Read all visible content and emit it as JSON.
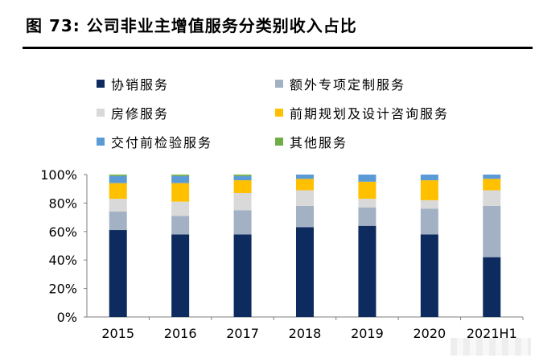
{
  "figure": {
    "title": "图 73:  公司非业主增值服务分类别收入占比"
  },
  "chart_data": {
    "type": "bar",
    "stacked": true,
    "categories": [
      "2015",
      "2016",
      "2017",
      "2018",
      "2019",
      "2020",
      "2021H1"
    ],
    "series": [
      {
        "name": "协销服务",
        "color": "#0d2b5e",
        "values": [
          61,
          58,
          58,
          63,
          64,
          58,
          42
        ]
      },
      {
        "name": "额外专项定制服务",
        "color": "#a3b1c4",
        "values": [
          13,
          13,
          17,
          15,
          13,
          18,
          36
        ]
      },
      {
        "name": "房修服务",
        "color": "#d9d9d9",
        "values": [
          9,
          10,
          12,
          11,
          6,
          6,
          11
        ]
      },
      {
        "name": "前期规划及设计咨询服务",
        "color": "#ffc000",
        "values": [
          11,
          13,
          9,
          8,
          12,
          14,
          8
        ]
      },
      {
        "name": "交付前检验服务",
        "color": "#5b9bd5",
        "values": [
          5,
          5,
          3,
          3,
          5,
          4,
          3
        ]
      },
      {
        "name": "其他服务",
        "color": "#70ad47",
        "values": [
          1,
          1,
          1,
          0,
          0,
          0,
          0
        ]
      }
    ],
    "ylim": [
      0,
      100
    ],
    "yticks": [
      "0%",
      "20%",
      "40%",
      "60%",
      "80%",
      "100%"
    ],
    "grid": false,
    "legend_position": "top"
  }
}
